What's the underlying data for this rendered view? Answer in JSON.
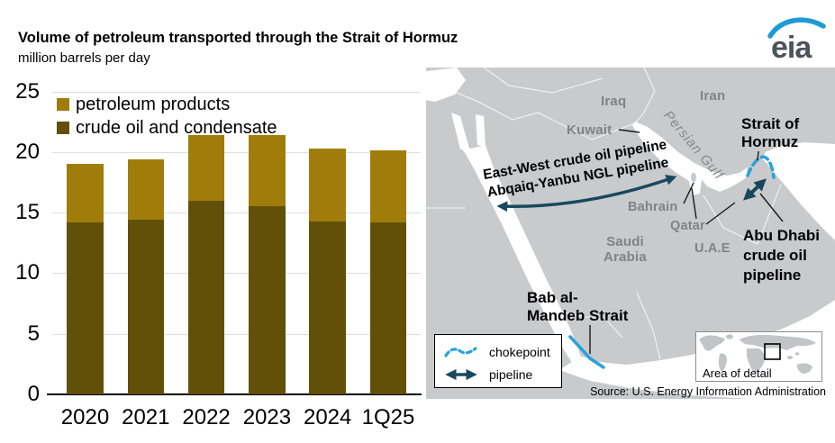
{
  "header": {
    "title": "Volume of petroleum transported through the Strait of Hormuz",
    "subtitle": "million barrels per day",
    "logo_text": "eia"
  },
  "chart_data": {
    "type": "bar",
    "stacked": true,
    "title": "Volume of petroleum transported through the Strait of Hormuz",
    "ylabel": "million barrels per day",
    "categories": [
      "2020",
      "2021",
      "2022",
      "2023",
      "2024",
      "1Q25"
    ],
    "series": [
      {
        "key": "crude",
        "name": "crude oil and condensate",
        "color": "#635008",
        "values": [
          14.2,
          14.4,
          16.0,
          15.5,
          14.3,
          14.2
        ]
      },
      {
        "key": "products",
        "name": "petroleum products",
        "color": "#A07D0B",
        "values": [
          4.8,
          5.0,
          5.4,
          5.9,
          6.0,
          5.9
        ]
      }
    ],
    "totals": [
      19.0,
      19.4,
      21.4,
      21.4,
      20.3,
      20.1
    ],
    "ylim": [
      0,
      25
    ],
    "yticks": [
      0,
      5,
      10,
      15,
      20,
      25
    ],
    "grid": true,
    "legend_position": "top-left-inside"
  },
  "chart_legend": {
    "items": [
      {
        "label": "petroleum products",
        "color": "#A07D0B"
      },
      {
        "label": "crude oil and condensate",
        "color": "#635008"
      }
    ]
  },
  "map": {
    "labels": {
      "iraq": "Iraq",
      "iran": "Iran",
      "kuwait": "Kuwait",
      "persian_gulf": "Persian Gulf",
      "bahrain": "Bahrain",
      "qatar": "Qatar",
      "saudi_line1": "Saudi",
      "saudi_line2": "Arabia",
      "uae": "U.A.E",
      "strait_line1": "Strait of",
      "strait_line2": "Hormuz",
      "abu_dhabi_line1": "Abu Dhabi",
      "abu_dhabi_line2": "crude oil",
      "abu_dhabi_line3": "pipeline",
      "bab_line1": "Bab al-",
      "bab_line2": "Mandeb Strait",
      "east_west_line1": "East-West crude oil pipeline",
      "east_west_line2": "Abqaiq-Yanbu NGL pipeline"
    },
    "legend": {
      "chokepoint_label": "chokepoint",
      "pipeline_label": "pipeline"
    },
    "inset_label": "Area of detail",
    "source": "Source: U.S. Energy Information Administration",
    "colors": {
      "land": "#C9CACC",
      "sea": "#FFFFFF",
      "chokepoint_blue": "#29A3DC",
      "pipeline_teal": "#17495E",
      "country_label_gray": "#808285"
    }
  }
}
